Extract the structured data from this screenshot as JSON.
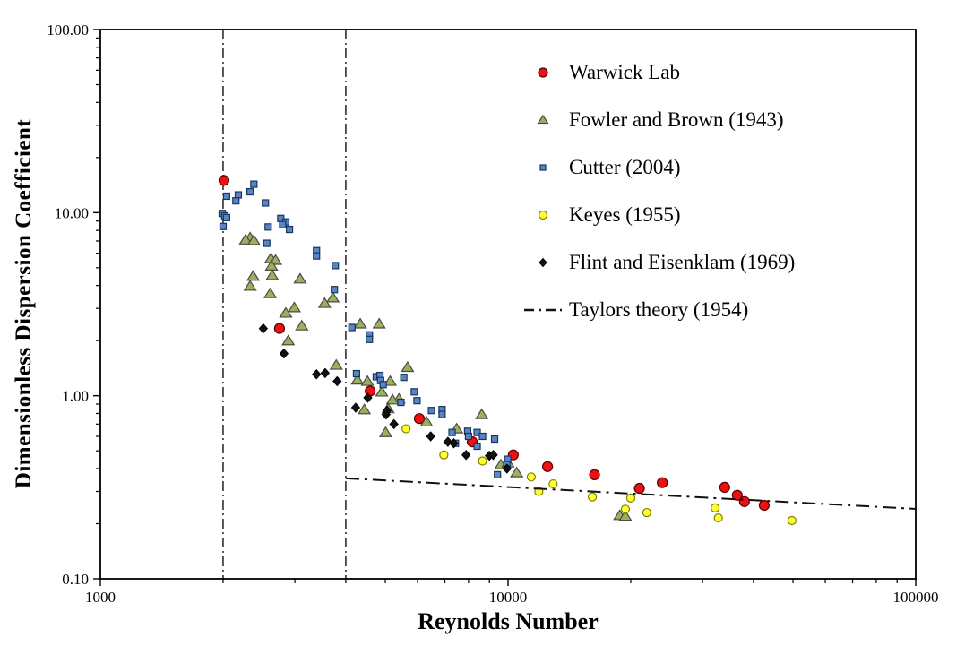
{
  "chart_data": {
    "type": "scatter",
    "title": "",
    "xlabel": "Reynolds Number",
    "ylabel": "Dimensionless Dispersion Coefficient",
    "x_scale": "log",
    "y_scale": "log",
    "xlim": [
      1000,
      100000
    ],
    "ylim": [
      0.1,
      100
    ],
    "grid": false,
    "legend_position": "inside-top-right",
    "x_ticks": [
      {
        "value": 1000,
        "label": "1000"
      },
      {
        "value": 10000,
        "label": "10000"
      },
      {
        "value": 100000,
        "label": "100000"
      }
    ],
    "x_minor_ticks": [
      2000,
      3000,
      4000,
      5000,
      6000,
      7000,
      8000,
      9000,
      20000,
      30000,
      40000,
      50000,
      60000,
      70000,
      80000,
      90000
    ],
    "y_ticks": [
      {
        "value": 100,
        "label": "100.00"
      },
      {
        "value": 10,
        "label": "10.00"
      },
      {
        "value": 1,
        "label": "1.00"
      },
      {
        "value": 0.1,
        "label": "0.10"
      }
    ],
    "y_minor_ticks": [
      0.2,
      0.3,
      0.4,
      0.5,
      0.6,
      0.7,
      0.8,
      0.9,
      2,
      3,
      4,
      5,
      6,
      7,
      8,
      9,
      20,
      30,
      40,
      50,
      60,
      70,
      80,
      90
    ],
    "reference_vlines": [
      {
        "x": 2000,
        "style": "dash-dot",
        "color": "#111111"
      },
      {
        "x": 4000,
        "style": "dash-dot",
        "color": "#111111"
      }
    ],
    "series": [
      {
        "name": "Warwick Lab",
        "marker": "circle",
        "fill": "#ee1111",
        "stroke": "#550000",
        "points": [
          [
            2010,
            15.0
          ],
          [
            2750,
            2.33
          ],
          [
            4590,
            1.06
          ],
          [
            6060,
            0.75
          ],
          [
            8170,
            0.56
          ],
          [
            10300,
            0.475
          ],
          [
            12500,
            0.41
          ],
          [
            16300,
            0.37
          ],
          [
            21000,
            0.312
          ],
          [
            23900,
            0.335
          ],
          [
            34000,
            0.316
          ],
          [
            36500,
            0.286
          ],
          [
            38000,
            0.264
          ],
          [
            42500,
            0.252
          ]
        ]
      },
      {
        "name": "Fowler and Brown (1943)",
        "marker": "triangle",
        "fill": "#9bb05a",
        "stroke": "#4a4a4a",
        "points": [
          [
            2330,
            7.3
          ],
          [
            2270,
            7.1
          ],
          [
            2380,
            7.05
          ],
          [
            2620,
            5.62
          ],
          [
            2690,
            5.5
          ],
          [
            2630,
            5.12
          ],
          [
            2640,
            4.54
          ],
          [
            2370,
            4.5
          ],
          [
            3090,
            4.35
          ],
          [
            2330,
            3.97
          ],
          [
            2610,
            3.62
          ],
          [
            2990,
            3.03
          ],
          [
            2850,
            2.83
          ],
          [
            3120,
            2.41
          ],
          [
            2890,
            2.0
          ],
          [
            3720,
            3.43
          ],
          [
            3550,
            3.2
          ],
          [
            4340,
            2.47
          ],
          [
            4830,
            2.47
          ],
          [
            3790,
            1.47
          ],
          [
            5670,
            1.43
          ],
          [
            4270,
            1.22
          ],
          [
            4520,
            1.2
          ],
          [
            5140,
            1.2
          ],
          [
            4900,
            1.05
          ],
          [
            5400,
            0.96
          ],
          [
            5210,
            0.95
          ],
          [
            5080,
            0.85
          ],
          [
            4440,
            0.84
          ],
          [
            6310,
            0.72
          ],
          [
            5010,
            0.63
          ],
          [
            7480,
            0.66
          ],
          [
            8620,
            0.79
          ],
          [
            9600,
            0.42
          ],
          [
            10000,
            0.43
          ],
          [
            10500,
            0.38
          ],
          [
            18800,
            0.222
          ],
          [
            19400,
            0.22
          ]
        ]
      },
      {
        "name": "Cutter (2004)",
        "marker": "square",
        "fill": "#5b84c7",
        "stroke": "#16365c",
        "points": [
          [
            2380,
            14.3
          ],
          [
            2330,
            13.0
          ],
          [
            2180,
            12.5
          ],
          [
            2040,
            12.3
          ],
          [
            2150,
            11.6
          ],
          [
            2540,
            11.3
          ],
          [
            1990,
            9.9
          ],
          [
            2020,
            9.6
          ],
          [
            2040,
            9.4
          ],
          [
            2000,
            8.4
          ],
          [
            2770,
            9.3
          ],
          [
            2850,
            8.9
          ],
          [
            2800,
            8.6
          ],
          [
            2910,
            8.1
          ],
          [
            2580,
            8.35
          ],
          [
            2560,
            6.8
          ],
          [
            3390,
            6.2
          ],
          [
            3390,
            5.8
          ],
          [
            3770,
            5.14
          ],
          [
            3750,
            3.8
          ],
          [
            4140,
            2.36
          ],
          [
            4570,
            2.15
          ],
          [
            4570,
            2.03
          ],
          [
            4250,
            1.32
          ],
          [
            4750,
            1.27
          ],
          [
            4850,
            1.29
          ],
          [
            4870,
            1.21
          ],
          [
            4940,
            1.15
          ],
          [
            5550,
            1.26
          ],
          [
            5890,
            1.05
          ],
          [
            5980,
            0.94
          ],
          [
            5460,
            0.92
          ],
          [
            6490,
            0.83
          ],
          [
            6890,
            0.84
          ],
          [
            6890,
            0.79
          ],
          [
            7290,
            0.63
          ],
          [
            7430,
            0.55
          ],
          [
            7960,
            0.64
          ],
          [
            8000,
            0.6
          ],
          [
            8400,
            0.63
          ],
          [
            8660,
            0.6
          ],
          [
            8400,
            0.53
          ],
          [
            9270,
            0.58
          ],
          [
            9980,
            0.45
          ],
          [
            9940,
            0.42
          ],
          [
            9420,
            0.37
          ]
        ]
      },
      {
        "name": "Keyes (1955)",
        "marker": "circle-small",
        "fill": "#ffff33",
        "stroke": "#7f7f00",
        "points": [
          [
            5620,
            0.66
          ],
          [
            6960,
            0.475
          ],
          [
            8660,
            0.44
          ],
          [
            11400,
            0.36
          ],
          [
            11900,
            0.3
          ],
          [
            12900,
            0.33
          ],
          [
            16100,
            0.28
          ],
          [
            19400,
            0.24
          ],
          [
            20000,
            0.276
          ],
          [
            21900,
            0.23
          ],
          [
            32200,
            0.244
          ],
          [
            32800,
            0.215
          ],
          [
            49700,
            0.208
          ]
        ]
      },
      {
        "name": "Flint and Eisenklam (1969)",
        "marker": "diamond",
        "fill": "#111111",
        "stroke": "#000000",
        "points": [
          [
            2510,
            2.33
          ],
          [
            2820,
            1.7
          ],
          [
            3390,
            1.31
          ],
          [
            3560,
            1.33
          ],
          [
            3810,
            1.2
          ],
          [
            4230,
            0.86
          ],
          [
            4530,
            0.975
          ],
          [
            5020,
            0.79
          ],
          [
            5050,
            0.83
          ],
          [
            5250,
            0.7
          ],
          [
            6460,
            0.6
          ],
          [
            7120,
            0.56
          ],
          [
            7360,
            0.55
          ],
          [
            7890,
            0.475
          ],
          [
            9000,
            0.47
          ],
          [
            9200,
            0.475
          ],
          [
            9940,
            0.4
          ]
        ]
      },
      {
        "name": "Taylors theory (1954)",
        "marker": "line",
        "type": "line",
        "style": "dash-dot",
        "color": "#111111",
        "points": [
          [
            4000,
            0.354
          ],
          [
            100000,
            0.241
          ]
        ]
      }
    ]
  }
}
